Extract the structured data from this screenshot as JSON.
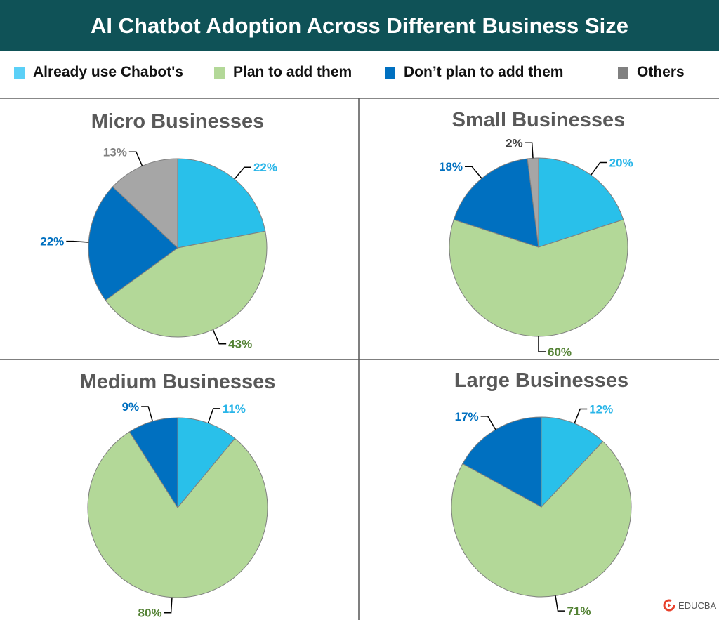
{
  "chart_data": {
    "title": "AI Chatbot Adoption Across Different Business Size",
    "type": "pie",
    "legend": {
      "placement": "top",
      "entries": [
        "Already use Chabot's",
        "Plan to add them",
        "Don’t plan to add them",
        "Others"
      ]
    },
    "colors": [
      "#29c0ea",
      "#b3d898",
      "#0070c0",
      "#a6a6a6"
    ],
    "label_colors": [
      "#29b5e8",
      "#548235",
      "#0070c0",
      "#808080"
    ],
    "charts": [
      {
        "title": "Micro Businesses",
        "values": [
          22,
          43,
          22,
          13
        ],
        "labels": [
          "22%",
          "43%",
          "22%",
          "13%"
        ]
      },
      {
        "title": "Small Businesses",
        "values": [
          20,
          60,
          18,
          2
        ],
        "labels": [
          "20%",
          "60%",
          "18%",
          "2%"
        ]
      },
      {
        "title": "Medium Businesses",
        "values": [
          11,
          80,
          9
        ],
        "labels": [
          "11%",
          "80%",
          "9%"
        ]
      },
      {
        "title": "Large Businesses",
        "values": [
          12,
          71,
          17
        ],
        "labels": [
          "12%",
          "71%",
          "17%"
        ]
      }
    ]
  },
  "logo": {
    "text": "EDUCBA"
  }
}
